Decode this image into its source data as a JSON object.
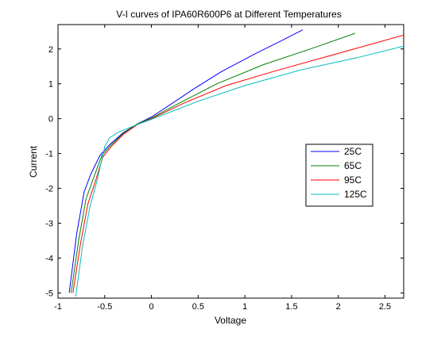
{
  "chart_data": {
    "type": "line",
    "title": "V-I curves of IPA60R600P6 at Different Temperatures",
    "xlabel": "Voltage",
    "ylabel": "Current",
    "xlim": [
      -1,
      2.7
    ],
    "ylim": [
      -5.15,
      2.7
    ],
    "xticks": [
      -1,
      -0.5,
      0,
      0.5,
      1,
      1.5,
      2,
      2.5
    ],
    "xtick_labels": [
      "-1",
      "-0.5",
      "0",
      "0.5",
      "1",
      "1.5",
      "2",
      "2.5"
    ],
    "yticks": [
      -5,
      -4,
      -3,
      -2,
      -1,
      0,
      1,
      2
    ],
    "ytick_labels": [
      "-5",
      "-4",
      "-3",
      "-2",
      "-1",
      "0",
      "1",
      "2"
    ],
    "grid": false,
    "legend_position": "right",
    "series": [
      {
        "name": "25C",
        "color": "#0000ff",
        "points": [
          [
            -0.88,
            -5.0
          ],
          [
            -0.8,
            -3.3
          ],
          [
            -0.72,
            -2.1
          ],
          [
            -0.65,
            -1.6
          ],
          [
            -0.55,
            -1.05
          ],
          [
            -0.45,
            -0.75
          ],
          [
            -0.3,
            -0.4
          ],
          [
            -0.15,
            -0.15
          ],
          [
            0.0,
            0.05
          ],
          [
            0.2,
            0.4
          ],
          [
            0.45,
            0.85
          ],
          [
            0.75,
            1.35
          ],
          [
            1.1,
            1.85
          ],
          [
            1.4,
            2.25
          ],
          [
            1.62,
            2.55
          ]
        ]
      },
      {
        "name": "65C",
        "color": "#008000",
        "points": [
          [
            -0.86,
            -5.0
          ],
          [
            -0.78,
            -3.5
          ],
          [
            -0.7,
            -2.3
          ],
          [
            -0.62,
            -1.7
          ],
          [
            -0.53,
            -1.05
          ],
          [
            -0.44,
            -0.78
          ],
          [
            -0.3,
            -0.42
          ],
          [
            -0.15,
            -0.15
          ],
          [
            0.0,
            0.02
          ],
          [
            0.3,
            0.45
          ],
          [
            0.7,
            1.0
          ],
          [
            1.2,
            1.55
          ],
          [
            1.7,
            2.0
          ],
          [
            2.18,
            2.45
          ]
        ]
      },
      {
        "name": "95C",
        "color": "#ff0000",
        "points": [
          [
            -0.84,
            -5.0
          ],
          [
            -0.76,
            -3.6
          ],
          [
            -0.68,
            -2.45
          ],
          [
            -0.6,
            -1.8
          ],
          [
            -0.52,
            -1.1
          ],
          [
            -0.43,
            -0.8
          ],
          [
            -0.3,
            -0.45
          ],
          [
            -0.15,
            -0.17
          ],
          [
            0.0,
            0.0
          ],
          [
            0.35,
            0.45
          ],
          [
            0.8,
            0.95
          ],
          [
            1.3,
            1.35
          ],
          [
            1.9,
            1.8
          ],
          [
            2.7,
            2.4
          ]
        ]
      },
      {
        "name": "125C",
        "color": "#00bfbf",
        "points": [
          [
            -0.81,
            -5.1
          ],
          [
            -0.74,
            -3.7
          ],
          [
            -0.66,
            -2.55
          ],
          [
            -0.58,
            -1.75
          ],
          [
            -0.5,
            -0.8
          ],
          [
            -0.45,
            -0.55
          ],
          [
            -0.35,
            -0.38
          ],
          [
            -0.2,
            -0.22
          ],
          [
            -0.1,
            -0.12
          ],
          [
            0.0,
            -0.02
          ],
          [
            0.5,
            0.5
          ],
          [
            1.0,
            0.95
          ],
          [
            1.6,
            1.4
          ],
          [
            2.2,
            1.75
          ],
          [
            2.65,
            2.05
          ],
          [
            2.7,
            2.08
          ]
        ]
      }
    ]
  }
}
